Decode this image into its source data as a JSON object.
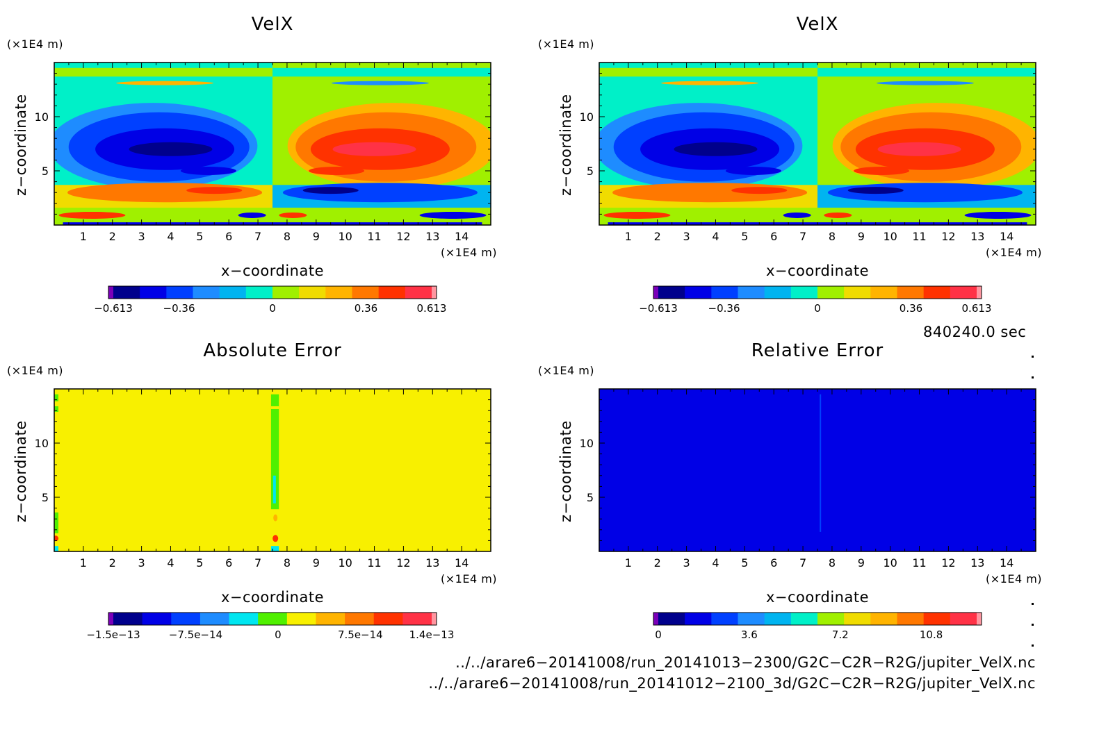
{
  "colors": {
    "velx_levels": [
      "#7a00b8",
      "#00008c",
      "#0000e6",
      "#0040ff",
      "#1e8cff",
      "#00b4f0",
      "#00f0c8",
      "#a0f000",
      "#f0dc00",
      "#ffb400",
      "#ff7800",
      "#ff3200",
      "#ff3246",
      "#ff96a0"
    ],
    "abserr_levels": [
      "#7a00b8",
      "#00008c",
      "#0000e6",
      "#0040ff",
      "#1e8cff",
      "#00e6f0",
      "#50f000",
      "#f8f000",
      "#ffb400",
      "#ff7800",
      "#ff3200",
      "#ff3246",
      "#ff96a0"
    ],
    "relerr_levels": [
      "#7a00b8",
      "#00008c",
      "#0000e6",
      "#0040ff",
      "#1e8cff",
      "#00b4f0",
      "#00f0c8",
      "#a0f000",
      "#f0dc00",
      "#ffb400",
      "#ff7800",
      "#ff3200",
      "#ff3246",
      "#ff96a0"
    ]
  },
  "chart_data": [
    {
      "type": "heatmap",
      "title": "VelX",
      "xlabel": "x−coordinate",
      "ylabel": "z−coordinate",
      "x_unit": "(×1E4 m)",
      "y_unit": "(×1E4 m)",
      "xlim": [
        0,
        15
      ],
      "ylim": [
        0,
        15
      ],
      "x_ticks": [
        "1",
        "2",
        "3",
        "4",
        "5",
        "6",
        "7",
        "8",
        "9",
        "10",
        "11",
        "12",
        "13",
        "14"
      ],
      "y_ticks": [
        "5",
        "10"
      ],
      "colorbar_ticks": [
        "−0.613",
        "−0.36",
        "0",
        "0.36",
        "0.613"
      ],
      "colorbar_range": [
        -0.613,
        0.613
      ],
      "field": "velx"
    },
    {
      "type": "heatmap",
      "title": "VelX",
      "xlabel": "x−coordinate",
      "ylabel": "z−coordinate",
      "x_unit": "(×1E4 m)",
      "y_unit": "(×1E4 m)",
      "xlim": [
        0,
        15
      ],
      "ylim": [
        0,
        15
      ],
      "x_ticks": [
        "1",
        "2",
        "3",
        "4",
        "5",
        "6",
        "7",
        "8",
        "9",
        "10",
        "11",
        "12",
        "13",
        "14"
      ],
      "y_ticks": [
        "5",
        "10"
      ],
      "colorbar_ticks": [
        "−0.613",
        "−0.36",
        "0",
        "0.36",
        "0.613"
      ],
      "colorbar_range": [
        -0.613,
        0.613
      ],
      "field": "velx"
    },
    {
      "type": "heatmap",
      "title": "Absolute Error",
      "xlabel": "x−coordinate",
      "ylabel": "z−coordinate",
      "x_unit": "(×1E4 m)",
      "y_unit": "(×1E4 m)",
      "xlim": [
        0,
        15
      ],
      "ylim": [
        0,
        15
      ],
      "x_ticks": [
        "1",
        "2",
        "3",
        "4",
        "5",
        "6",
        "7",
        "8",
        "9",
        "10",
        "11",
        "12",
        "13",
        "14"
      ],
      "y_ticks": [
        "5",
        "10"
      ],
      "colorbar_ticks": [
        "−1.5e−13",
        "−7.5e−14",
        "0",
        "7.5e−14",
        "1.4e−13"
      ],
      "colorbar_range": [
        -1.5e-13,
        1.4e-13
      ],
      "field": "abserr"
    },
    {
      "type": "heatmap",
      "title": "Relative Error",
      "xlabel": "x−coordinate",
      "ylabel": "z−coordinate",
      "x_unit": "(×1E4 m)",
      "y_unit": "(×1E4 m)",
      "xlim": [
        0,
        15
      ],
      "ylim": [
        0,
        15
      ],
      "x_ticks": [
        "1",
        "2",
        "3",
        "4",
        "5",
        "6",
        "7",
        "8",
        "9",
        "10",
        "11",
        "12",
        "13",
        "14"
      ],
      "y_ticks": [
        "5",
        "10"
      ],
      "colorbar_ticks": [
        "0",
        "3.6",
        "7.2",
        "10.8"
      ],
      "colorbar_range": [
        0,
        12.6
      ],
      "field": "relerr"
    }
  ],
  "annotations": {
    "time": "840240.0 sec",
    "file1": "../../arare6−20141008/run_20141013−2300/G2C−C2R−R2G/jupiter_VelX.nc",
    "file2": "../../arare6−20141008/run_20141012−2100_3d/G2C−C2R−R2G/jupiter_VelX.nc"
  }
}
